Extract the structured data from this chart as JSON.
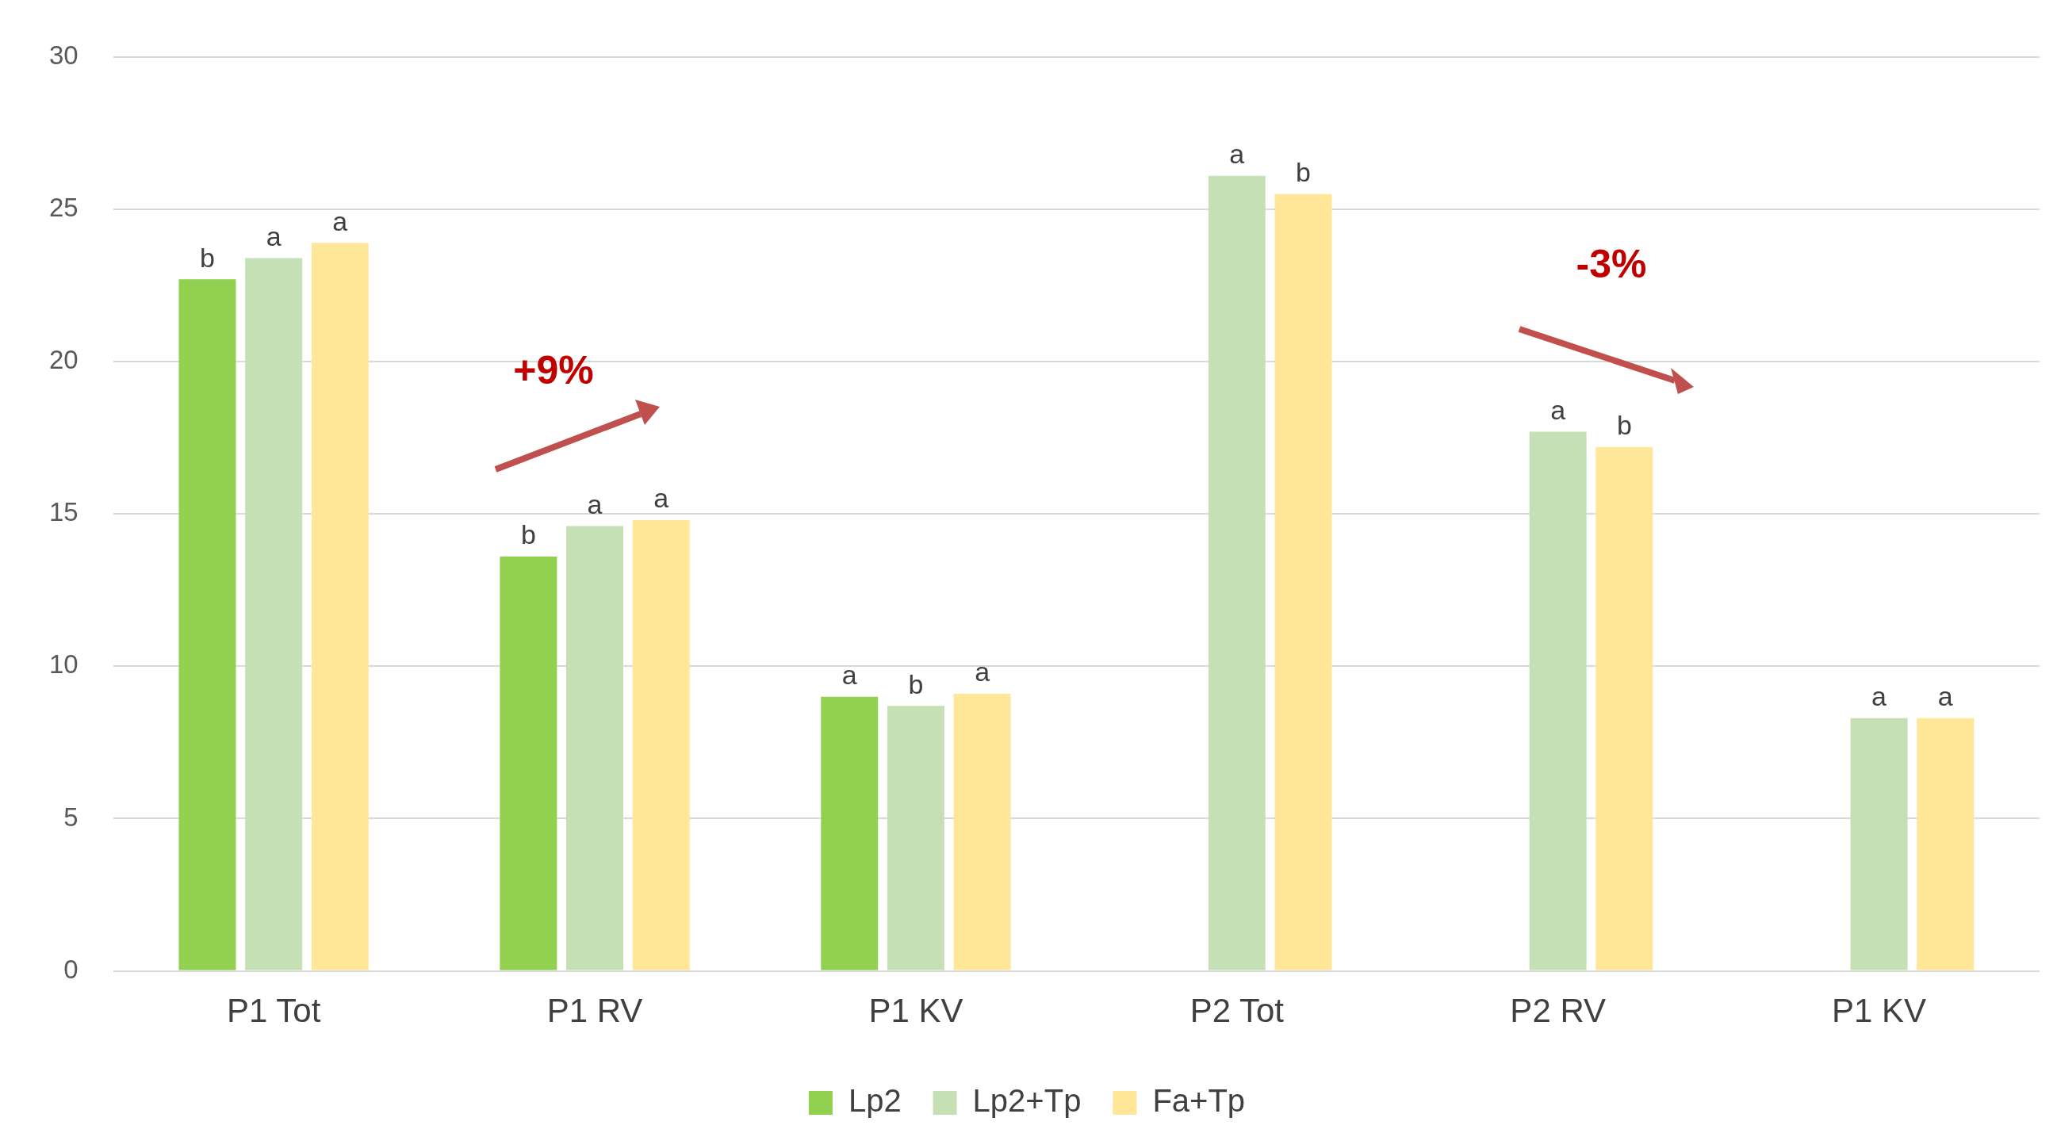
{
  "chart_data": {
    "type": "bar",
    "categories": [
      "P1 Tot",
      "P1 RV",
      "P1 KV",
      "P2 Tot",
      "P2 RV",
      "P1 KV"
    ],
    "series": [
      {
        "name": "Lp2",
        "color": "#92d050",
        "values": [
          22.7,
          13.6,
          9.0,
          null,
          null,
          null
        ],
        "value_labels": [
          "b",
          "b",
          "a",
          null,
          null,
          null
        ]
      },
      {
        "name": "Lp2+Tp",
        "color": "#c5e0b4",
        "values": [
          23.4,
          14.6,
          8.7,
          26.1,
          17.7,
          8.3
        ],
        "value_labels": [
          "a",
          "a",
          "b",
          "a",
          "a",
          "a"
        ]
      },
      {
        "name": "Fa+Tp",
        "color": "#ffe699",
        "values": [
          23.9,
          14.8,
          9.1,
          25.5,
          17.2,
          8.3
        ],
        "value_labels": [
          "a",
          "a",
          "a",
          "b",
          "b",
          "a"
        ]
      }
    ],
    "ylim": [
      0,
      30
    ],
    "yticks": [
      0,
      5,
      10,
      15,
      20,
      25,
      30
    ],
    "grid": "y",
    "legend": "bottom",
    "annotations": [
      "+9%",
      "-3%"
    ]
  }
}
